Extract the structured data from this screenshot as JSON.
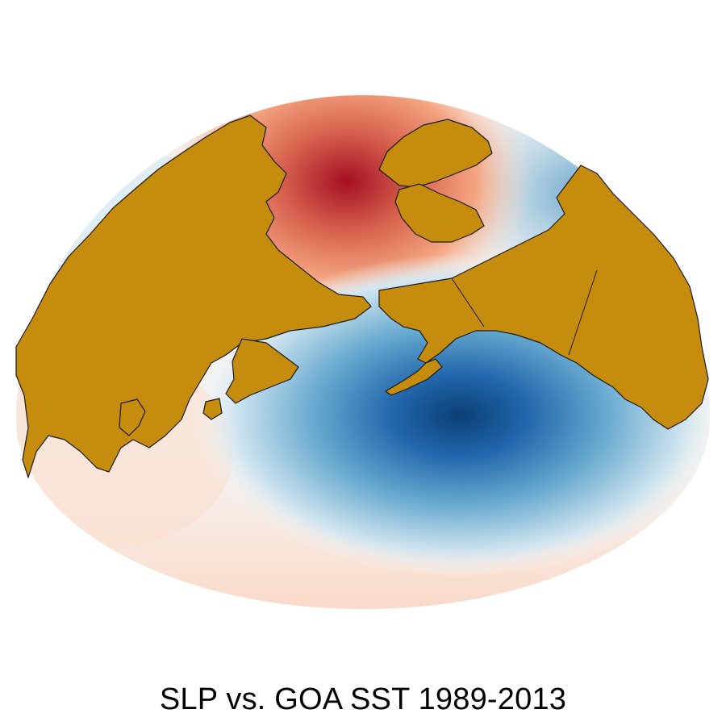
{
  "title": "SLP vs. GOA SST 1989-2013",
  "colors": {
    "land": "#c68c0e",
    "land_outline": "#1a1a1a",
    "positive_strong": "#b2182b",
    "positive_mid": "#ef8a62",
    "positive_weak": "#fddbc7",
    "neutral": "#f7f7f7",
    "negative_weak": "#d1e5f0",
    "negative_mid": "#67a9cf",
    "negative_strong": "#2166ac",
    "negative_core": "#0b3f75"
  }
}
